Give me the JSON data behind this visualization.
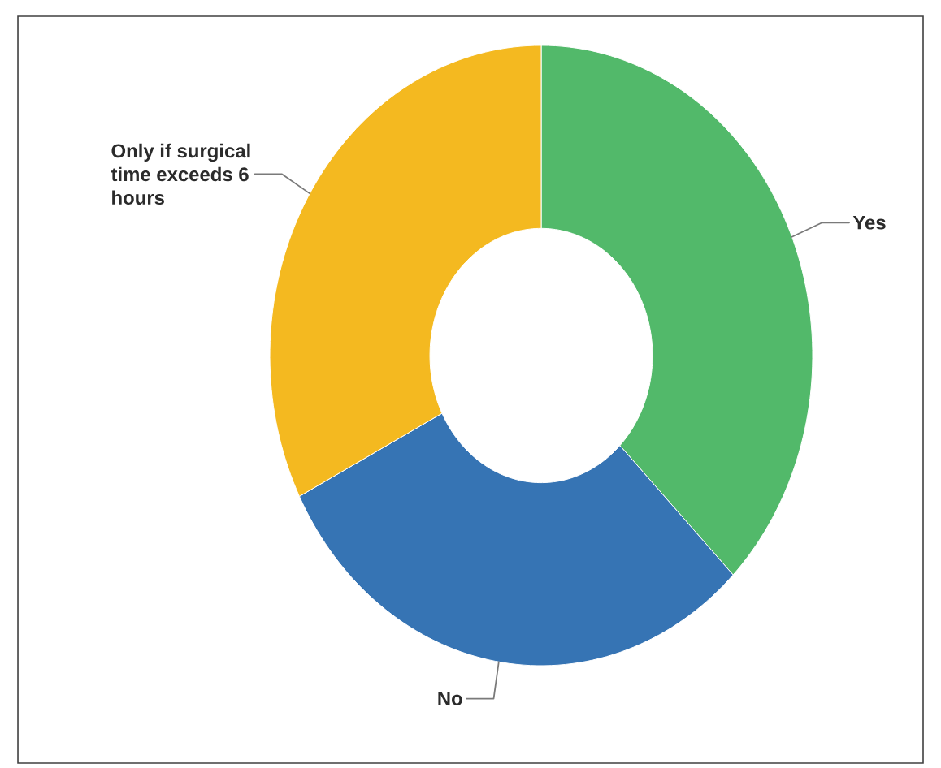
{
  "chart_data": {
    "type": "donut",
    "categories": [
      "Yes",
      "No",
      "Only if surgical time exceeds 6 hours"
    ],
    "values": [
      37.5,
      30,
      32.5
    ],
    "colors": [
      "#52b96a",
      "#3674b4",
      "#f4b920"
    ]
  }
}
